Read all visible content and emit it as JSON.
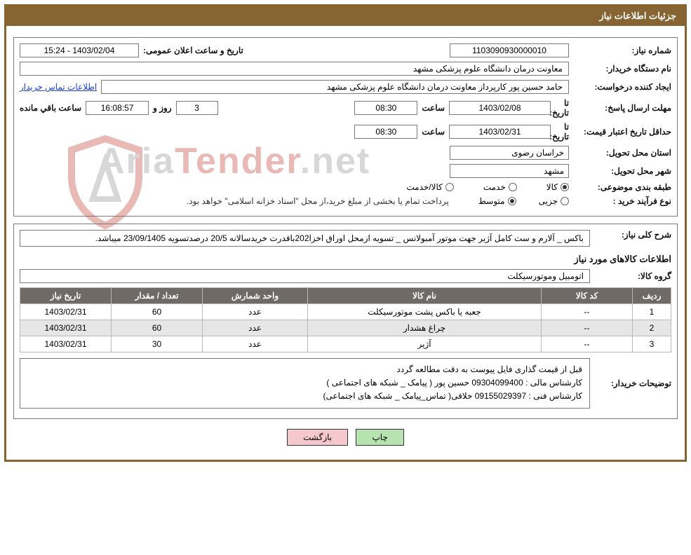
{
  "header": {
    "title": "جزئیات اطلاعات نیاز"
  },
  "panel1": {
    "need_number_label": "شماره نیاز:",
    "need_number": "1103090930000010",
    "announce_label": "تاریخ و ساعت اعلان عمومی:",
    "announce_value": "1403/02/04 - 15:24",
    "buyer_label": "نام دستگاه خریدار:",
    "buyer_value": "معاونت درمان دانشگاه علوم پزشکی مشهد",
    "requester_label": "ایجاد کننده درخواست:",
    "requester_value": "حامد حسین پور کارپرداز معاونت درمان دانشگاه علوم پزشکی مشهد",
    "contact_link": "اطلاعات تماس خریدار",
    "deadline_label": "مهلت ارسال پاسخ:",
    "deadline_ta": "تا تاریخ:",
    "deadline_date": "1403/02/08",
    "time_label": "ساعت",
    "deadline_time": "08:30",
    "days_label": "روز و",
    "days_value": "3",
    "countdown_value": "16:08:57",
    "remaining_label": "ساعت باقي مانده",
    "validity_label": "حداقل تاریخ اعتبار قیمت:",
    "validity_date": "1403/02/31",
    "validity_time": "08:30",
    "province_label": "استان محل تحویل:",
    "province_value": "خراسان رضوی",
    "city_label": "شهر محل تحویل:",
    "city_value": "مشهد",
    "category_label": "طبقه بندی موضوعی:",
    "cat_goods": "کالا",
    "cat_service": "خدمت",
    "cat_both": "کالا/خدمت",
    "purchase_type_label": "نوع فرآیند خرید :",
    "pt_minor": "جزیی",
    "pt_medium": "متوسط",
    "purchase_note": "پرداخت تمام یا بخشی از مبلغ خرید،از محل \"اسناد خزانه اسلامی\" خواهد بود."
  },
  "panel2": {
    "overall_label": "شرح کلی نیاز:",
    "overall_value": "باکس _ آلارم و ست کامل آژیر جهت موتور آمبولانس _ تسویه ازمحل اوراق اخزا202باقدرت خریدسالانه 20/5 درصدتسویه 23/09/1405 میباشد.",
    "goods_info_title": "اطلاعات کالاهای مورد نیاز",
    "goods_group_label": "گروه کالا:",
    "goods_group_value": "اتومبیل وموتورسیکلت",
    "table": {
      "headers": {
        "row": "ردیف",
        "code": "کد کالا",
        "name": "نام کالا",
        "unit": "واحد شمارش",
        "qty": "تعداد / مقدار",
        "date": "تاریخ نیاز"
      },
      "rows": [
        {
          "row": "1",
          "code": "--",
          "name": "جعبه یا باکس پشت موتورسیکلت",
          "unit": "عدد",
          "qty": "60",
          "date": "1403/02/31"
        },
        {
          "row": "2",
          "code": "--",
          "name": "چراغ هشدار",
          "unit": "عدد",
          "qty": "60",
          "date": "1403/02/31"
        },
        {
          "row": "3",
          "code": "--",
          "name": "آژیر",
          "unit": "عدد",
          "qty": "30",
          "date": "1403/02/31"
        }
      ]
    },
    "desc_label": "توضیحات خریدار:",
    "desc_line1": "قبل از قیمت گذاری فایل پیوست به دقت مطالعه گردد",
    "desc_line2": "کارشناس مالی : 09304099400 حسین پور ( پیامک _ شبکه های اجتماعی )",
    "desc_line3": "کارشناس فنی : 09155029397 خلاقی( تماس_پیامک _ شبکه های اجتماعی)"
  },
  "buttons": {
    "print": "چاپ",
    "back": "بازگشت"
  },
  "watermark": {
    "text_gray1": "Aria",
    "text_red": "Tender",
    "text_gray2": ".net"
  },
  "colors": {
    "frame": "#876533",
    "th_bg": "#706a66",
    "btn_print": "#b7e3b0",
    "btn_back": "#f5c8cd"
  }
}
